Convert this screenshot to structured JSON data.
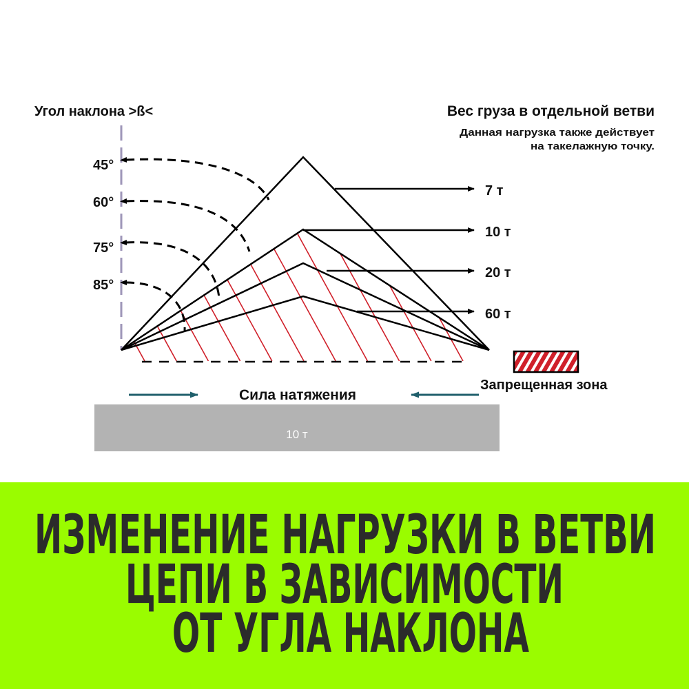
{
  "diagram": {
    "angle_title": "Угол наклона >ß<",
    "weight_title": "Вес груза в отдельной ветви",
    "weight_note_line1": "Данная нагрузка также действует",
    "weight_note_line2": "на такелажную точку.",
    "angles": [
      "45°",
      "60°",
      "75°",
      "85°"
    ],
    "loads": [
      "7 т",
      "10 т",
      "20 т",
      "60 т"
    ],
    "tension_label": "Сила натяжения",
    "load_block_label": "10 т",
    "legend_label": "Запрещенная зона",
    "colors": {
      "hatch": "#d0202a",
      "axis": "#9e96b8",
      "arrow": "#1f5f6b",
      "block": "#b3b3b3",
      "banner": "#9afc00",
      "banner_text": "#2b2b2b"
    }
  },
  "banner": {
    "line1": "ИЗМЕНЕНИЕ НАГРУЗКИ В ВЕТВИ",
    "line2": "ЦЕПИ В ЗАВИСИМОСТИ",
    "line3": "ОТ УГЛА НАКЛОНА"
  }
}
